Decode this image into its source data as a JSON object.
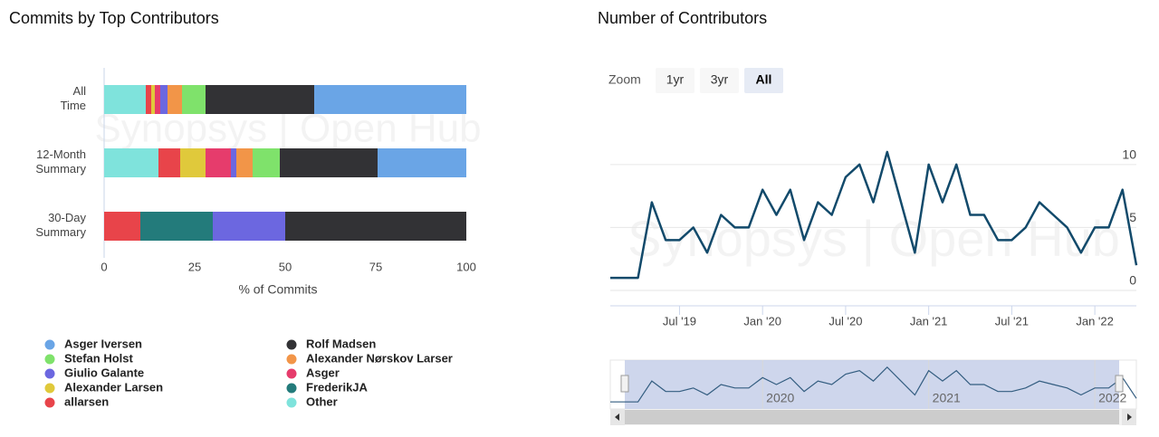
{
  "chart_data": [
    {
      "type": "stacked-barh",
      "title": "Commits by Top Contributors",
      "watermark": "Synopsys | Open Hub",
      "categories": [
        "All Time",
        "12-Month Summary",
        "30-Day Summary"
      ],
      "x_label": "% of Commits",
      "xlim": [
        0,
        101
      ],
      "xticks": [
        0,
        25,
        50,
        75,
        100
      ],
      "series": [
        {
          "name": "Asger Iversen",
          "color": "#6aa5e6",
          "values": [
            42,
            24.5,
            0
          ]
        },
        {
          "name": "Stefan Holst",
          "color": "#7fe26b",
          "values": [
            6.5,
            7.5,
            0
          ]
        },
        {
          "name": "Giulio Galante",
          "color": "#6c67e0",
          "values": [
            2,
            1.5,
            20
          ]
        },
        {
          "name": "Alexander Larsen",
          "color": "#e0c93b",
          "values": [
            1,
            7,
            0
          ]
        },
        {
          "name": "allarsen",
          "color": "#e8444a",
          "values": [
            1.5,
            6,
            10
          ]
        },
        {
          "name": "Rolf Madsen",
          "color": "#323235",
          "values": [
            30,
            27,
            50
          ]
        },
        {
          "name": "Alexander Nørskov Larser",
          "color": "#f29548",
          "values": [
            4,
            4.5,
            0
          ]
        },
        {
          "name": "Asger",
          "color": "#e63c6c",
          "values": [
            1.5,
            7,
            0
          ]
        },
        {
          "name": "FrederikJA",
          "color": "#237b7b",
          "values": [
            0,
            0,
            20
          ]
        },
        {
          "name": "Other",
          "color": "#7fe3dc",
          "values": [
            11.5,
            15,
            0
          ]
        }
      ]
    },
    {
      "type": "line",
      "title": "Number of Contributors",
      "watermark": "Synopsys | Open Hub",
      "zoom": {
        "label": "Zoom",
        "buttons": [
          "1yr",
          "3yr",
          "All"
        ],
        "selected": "All"
      },
      "color": "#124a6b",
      "grid": true,
      "x": [
        "2019-02",
        "2019-03",
        "2019-04",
        "2019-05",
        "2019-06",
        "2019-07",
        "2019-08",
        "2019-09",
        "2019-10",
        "2019-11",
        "2019-12",
        "2020-01",
        "2020-02",
        "2020-03",
        "2020-04",
        "2020-05",
        "2020-06",
        "2020-07",
        "2020-08",
        "2020-09",
        "2020-10",
        "2020-11",
        "2020-12",
        "2021-01",
        "2021-02",
        "2021-03",
        "2021-04",
        "2021-05",
        "2021-06",
        "2021-07",
        "2021-08",
        "2021-09",
        "2021-10",
        "2021-11",
        "2021-12",
        "2022-01",
        "2022-02",
        "2022-03",
        "2022-04"
      ],
      "values": [
        1,
        1,
        1,
        7,
        4,
        4,
        5,
        3,
        6,
        5,
        5,
        8,
        6,
        8,
        4,
        7,
        6,
        9,
        10,
        7,
        11,
        7,
        3,
        10,
        7,
        10,
        6,
        6,
        4,
        4,
        5,
        7,
        6,
        5,
        3,
        5,
        5,
        8,
        2
      ],
      "xlim": [
        "2019-02",
        "2022-04"
      ],
      "ylim": [
        0,
        12
      ],
      "yticks": [
        0,
        5,
        10
      ],
      "xticks": [
        {
          "value": "2019-07",
          "label": "Jul '19"
        },
        {
          "value": "2020-01",
          "label": "Jan '20"
        },
        {
          "value": "2020-07",
          "label": "Jul '20"
        },
        {
          "value": "2021-01",
          "label": "Jan '21"
        },
        {
          "value": "2021-07",
          "label": "Jul '21"
        },
        {
          "value": "2022-01",
          "label": "Jan '22"
        }
      ],
      "navigator_ticks": [
        {
          "value": "2020-01",
          "label": "2020"
        },
        {
          "value": "2021-01",
          "label": "2021"
        },
        {
          "value": "2022-01",
          "label": "2022"
        }
      ]
    }
  ]
}
